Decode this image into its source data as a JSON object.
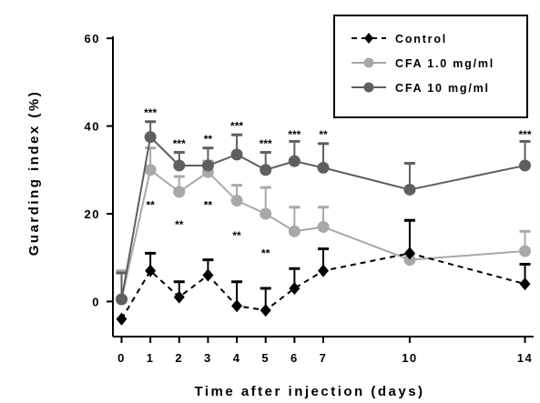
{
  "chart_data": {
    "type": "line",
    "xlabel": "Time after injection (days)",
    "ylabel": "Guarding index (%)",
    "xlim": [
      -0.3,
      14.3
    ],
    "ylim": [
      -8,
      65
    ],
    "x_ticks": [
      0,
      1,
      2,
      3,
      4,
      5,
      6,
      7,
      10,
      14
    ],
    "y_ticks": [
      0,
      20,
      40,
      60
    ],
    "grid": false,
    "legend": "top-right",
    "series": [
      {
        "name": "Control",
        "color": "#000000",
        "line_style": "dashed",
        "marker": "diamond",
        "x": [
          0,
          1,
          2,
          3,
          4,
          5,
          6,
          7,
          10,
          14
        ],
        "y": [
          -4,
          7,
          1,
          6,
          -1,
          -2,
          3,
          7,
          11,
          4
        ],
        "error_upper": [
          0,
          4,
          3.5,
          3.5,
          5.5,
          5,
          4.5,
          5,
          7.5,
          4.5
        ]
      },
      {
        "name": "CFA 1.0 mg/ml",
        "color": "#a8a8a8",
        "line_style": "solid",
        "marker": "circle",
        "x": [
          0,
          1,
          2,
          3,
          4,
          5,
          6,
          7,
          10,
          14
        ],
        "y": [
          0.5,
          30,
          25,
          29.5,
          23,
          20,
          16,
          17,
          9.5,
          11.5
        ],
        "error_upper": [
          6.5,
          5,
          3.5,
          2.5,
          3.5,
          6,
          5.5,
          4.5,
          9,
          4.5
        ]
      },
      {
        "name": "CFA 10 mg/ml",
        "color": "#5f5f5f",
        "line_style": "solid",
        "marker": "circle",
        "x": [
          0,
          1,
          2,
          3,
          4,
          5,
          6,
          7,
          10,
          14
        ],
        "y": [
          0.5,
          37.5,
          31,
          31,
          33.5,
          30,
          32,
          30.5,
          25.5,
          31
        ],
        "error_upper": [
          6,
          3.5,
          3,
          4,
          4.5,
          4,
          4.5,
          5.5,
          6,
          5.5
        ]
      }
    ],
    "annotations": [
      {
        "x": 1,
        "y": 43,
        "text": "***"
      },
      {
        "x": 2,
        "y": 36,
        "text": "***"
      },
      {
        "x": 3,
        "y": 37,
        "text": "**"
      },
      {
        "x": 4,
        "y": 40,
        "text": "***"
      },
      {
        "x": 5,
        "y": 36,
        "text": "***"
      },
      {
        "x": 6,
        "y": 38,
        "text": "***"
      },
      {
        "x": 7,
        "y": 38,
        "text": "**"
      },
      {
        "x": 14,
        "y": 38,
        "text": "***"
      },
      {
        "x": 1,
        "y": 22,
        "text": "**"
      },
      {
        "x": 2,
        "y": 17.5,
        "text": "**"
      },
      {
        "x": 3,
        "y": 22,
        "text": "**"
      },
      {
        "x": 4,
        "y": 15,
        "text": "**"
      },
      {
        "x": 5,
        "y": 11,
        "text": "**"
      }
    ]
  }
}
